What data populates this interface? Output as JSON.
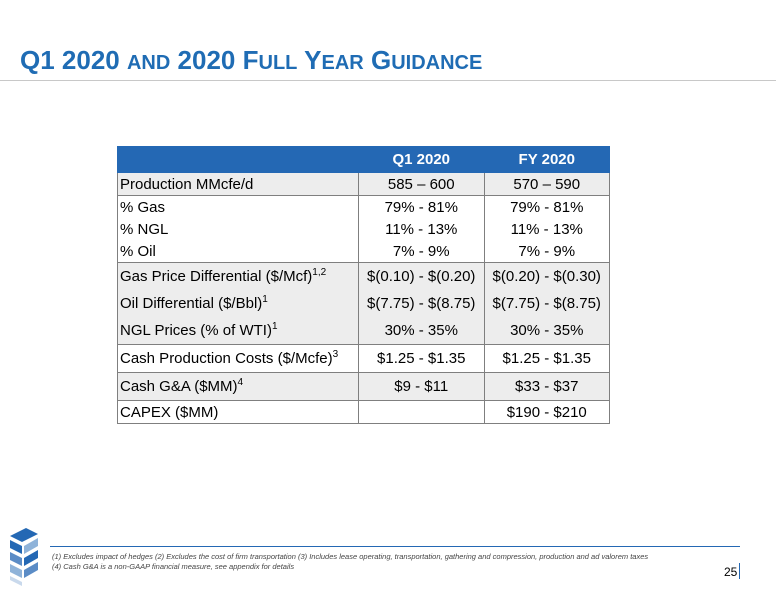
{
  "title": {
    "q1": "Q1 2020 ",
    "and": "AND",
    "mid": " 2020 F",
    "ull": "ULL",
    "y": " Y",
    "ear": "EAR",
    "g": " G",
    "uidance": "UIDANCE"
  },
  "table": {
    "headers": [
      "",
      "Q1 2020",
      "FY 2020"
    ],
    "rows": [
      {
        "label": "Production MMcfe/d",
        "sup": "",
        "q1": "585 – 600",
        "fy": "570 – 590"
      },
      {
        "label": "% Gas",
        "sup": "",
        "q1": "79% - 81%",
        "fy": "79% - 81%"
      },
      {
        "label": "% NGL",
        "sup": "",
        "q1": "11% - 13%",
        "fy": "11% - 13%"
      },
      {
        "label": "% Oil",
        "sup": "",
        "q1": "7% - 9%",
        "fy": "7% - 9%"
      },
      {
        "label": "Gas Price Differential ($/Mcf)",
        "sup": "1,2",
        "q1": "$(0.10) - $(0.20)",
        "fy": "$(0.20) - $(0.30)"
      },
      {
        "label": "Oil Differential ($/Bbl)",
        "sup": "1",
        "q1": "$(7.75) - $(8.75)",
        "fy": "$(7.75) - $(8.75)"
      },
      {
        "label": "NGL Prices (% of  WTI)",
        "sup": "1",
        "q1": "30% - 35%",
        "fy": "30% - 35%"
      },
      {
        "label": "Cash Production Costs ($/Mcfe)",
        "sup": "3",
        "q1": "$1.25 - $1.35",
        "fy": "$1.25 - $1.35"
      },
      {
        "label": "Cash G&A ($MM)",
        "sup": "4",
        "q1": "$9 - $11",
        "fy": "$33 - $37"
      },
      {
        "label": "CAPEX ($MM)",
        "sup": "",
        "q1": "",
        "fy": "$190 - $210"
      }
    ]
  },
  "footnotes": {
    "line1": "(1) Excludes impact of hedges (2) Excludes the cost of firm transportation (3) Includes lease operating, transportation, gathering and compression, production and ad valorem taxes",
    "line2": "(4) Cash G&A is a non-GAAP financial measure, see appendix for details"
  },
  "page_number": "25",
  "colors": {
    "accent": "#2468b4",
    "title": "#1f6cb4",
    "shade": "#ededed"
  },
  "logo_icon": "company-logo-icon"
}
